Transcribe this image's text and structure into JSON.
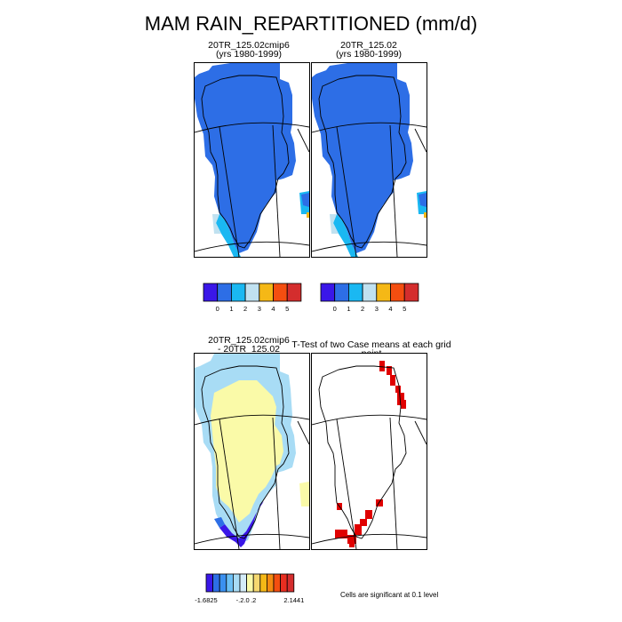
{
  "title": "MAM RAIN_REPARTITIONED (mm/d)",
  "panels": {
    "p1": {
      "line1": "20TR_125.02cmip6",
      "line2": "(yrs 1980-1999)"
    },
    "p2": {
      "line1": "20TR_125.02",
      "line2": "(yrs 1980-1999)"
    },
    "p3": {
      "line1": "20TR_125.02cmip6",
      "line2": "- 20TR_125.02"
    },
    "p4": {
      "line1": "T-Test of two Case means at each grid point"
    }
  },
  "colorbar_top": {
    "colors": [
      "#3a17e8",
      "#2d6ee6",
      "#1ab8f2",
      "#c0e1f0",
      "#f5b816",
      "#f44e10",
      "#d42d2d"
    ],
    "labels": [
      "0",
      "1",
      "2",
      "3",
      "4",
      "5"
    ]
  },
  "colorbar_bottom": {
    "colors": [
      "#3a17e8",
      "#2d6ee6",
      "#3a90f0",
      "#6cc0f5",
      "#a8dcf5",
      "#d4ecf8",
      "#fafaa8",
      "#f5d870",
      "#f5b816",
      "#f48a10",
      "#f44e10",
      "#e82e20",
      "#d42d2d"
    ],
    "labels": [
      "-1.6825",
      "-.2",
      ".0",
      ".2",
      "2.1441"
    ]
  },
  "note": "Cells are significant at 0.1 level",
  "chart_data": [
    {
      "type": "heatmap",
      "title": "20TR_125.02cmip6 (yrs 1980-1999)",
      "variable": "MAM RAIN_REPARTITIONED",
      "units": "mm/d",
      "levels": [
        0,
        1,
        2,
        3,
        4,
        5
      ],
      "dominant_value_range": [
        0,
        1
      ]
    },
    {
      "type": "heatmap",
      "title": "20TR_125.02 (yrs 1980-1999)",
      "variable": "MAM RAIN_REPARTITIONED",
      "units": "mm/d",
      "levels": [
        0,
        1,
        2,
        3,
        4,
        5
      ],
      "dominant_value_range": [
        0,
        1
      ]
    },
    {
      "type": "heatmap",
      "title": "20TR_125.02cmip6 - 20TR_125.02",
      "levels_min": -1.6825,
      "levels_max": 2.1441,
      "level_labels": [
        -0.2,
        0.0,
        0.2
      ]
    },
    {
      "type": "heatmap",
      "title": "T-Test of two Case means at each grid point",
      "significance_level": 0.1
    }
  ],
  "colors": {
    "land_fill": "#2d6ee6",
    "diff_positive_small": "#fafaa8",
    "diff_negative_small": "#a8dcf5",
    "significant": "#e00000"
  }
}
